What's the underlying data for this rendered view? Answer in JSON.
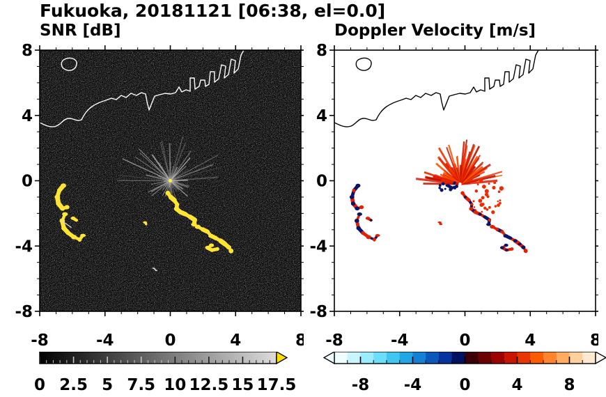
{
  "header": {
    "title": "Fukuoka, 20181121 [06:38, el=0.0]"
  },
  "coastline": {
    "paths": [
      "M 0 104 C 8 108 16 112 24 109 C 31 106 34 99 41 98 C 48 97 52 103 60 100 C 64 92 68 86 75 81 C 81 77 88 74 95 72 L 103 69 L 110 71 L 117 65 L 124 68 L 131 62 L 139 65 L 146 61 L 152 63 L 154 74 L 157 86 L 161 76 L 165 66 L 172 64 L 180 62 L 188 63 L 195 61 L 200 53 L 204 60 L 210 57 L 216 59 L 216 40 L 222 40 L 223 56 L 229 52 L 231 43 L 237 43 L 238 52 L 243 49 L 245 31 L 251 31 L 251 46 L 257 41 L 261 21 L 267 23 L 265 40 L 271 35 L 275 13 L 281 15 L 279 33 L 285 27 L 289 7 L 293 0",
      "M 36 13 C 29 16 30 25 37 28 C 44 31 52 28 53 20 C 54 13 45 9 36 13 Z"
    ]
  },
  "chart_data": [
    {
      "type": "heatmap",
      "panel": "snr",
      "title": "SNR [dB]",
      "xlim": [
        -8,
        8
      ],
      "ylim": [
        -8,
        8
      ],
      "xticks": [
        -8,
        -4,
        0,
        4,
        8
      ],
      "yticks": [
        8,
        4,
        0,
        -4,
        -8
      ],
      "minor_tick_step": 1,
      "background": "#070707",
      "coast_color": "#ffffff",
      "colorbar": {
        "type": "gradient",
        "min": 0,
        "max": 17.5,
        "tick_labels": [
          "0",
          "2.5",
          "5",
          "7.5",
          "10",
          "12.5",
          "15",
          "17.5"
        ],
        "tick_values": [
          0,
          2.5,
          5,
          7.5,
          10,
          12.5,
          15,
          17.5
        ],
        "minor_step": 0.5,
        "start_color": "#000000",
        "end_color": "#dcdcdc",
        "over_arrow_color": "#ffdf00"
      },
      "features": {
        "noise_speckle": true,
        "fan": {
          "cx": 0,
          "cy": 0,
          "rays": 54,
          "angle_from": 0,
          "angle_to": 353,
          "min_len": 0.8,
          "max_len": 3.5,
          "down_scale": 0.45,
          "min_width": 0.6,
          "max_width": 2.0,
          "min_opacity": 0.25,
          "max_opacity": 0.9,
          "colors": [
            "#d8d8d8",
            "#a8a8a8",
            "#8a8a8a",
            "#c2c2c2"
          ]
        },
        "center_dot": {
          "x": 0,
          "y": 0,
          "r": 2.5,
          "color": "#ffee44"
        },
        "echo_chains": [
          {
            "palette": [
              "#ffe433"
            ],
            "width": 5.5,
            "points": [
              [
                -6.55,
                -0.3
              ],
              [
                -6.8,
                -0.6
              ],
              [
                -6.92,
                -1.0
              ],
              [
                -6.85,
                -1.4
              ],
              [
                -6.6,
                -1.7
              ],
              [
                -6.33,
                -1.62
              ]
            ]
          },
          {
            "palette": [
              "#ffe433"
            ],
            "width": 5.5,
            "points": [
              [
                -6.45,
                -2.05
              ],
              [
                -6.62,
                -2.45
              ],
              [
                -6.52,
                -2.9
              ],
              [
                -6.25,
                -3.2
              ],
              [
                -5.9,
                -3.45
              ],
              [
                -5.55,
                -3.6
              ],
              [
                -5.35,
                -3.35
              ]
            ]
          },
          {
            "palette": [
              "#ffe433"
            ],
            "width": 4,
            "points": [
              [
                -5.95,
                -2.3
              ],
              [
                -5.75,
                -2.42
              ]
            ]
          },
          {
            "palette": [
              "#ffe433"
            ],
            "width": 5.5,
            "points": [
              [
                -0.15,
                -0.75
              ],
              [
                0.02,
                -1.0
              ],
              [
                0.25,
                -1.2
              ],
              [
                0.42,
                -1.45
              ],
              [
                0.38,
                -1.72
              ],
              [
                0.62,
                -1.92
              ],
              [
                0.92,
                -2.05
              ],
              [
                1.22,
                -2.22
              ],
              [
                1.5,
                -2.4
              ],
              [
                1.45,
                -2.68
              ]
            ]
          },
          {
            "palette": [
              "#ffe433"
            ],
            "width": 5.5,
            "points": [
              [
                1.68,
                -2.82
              ],
              [
                1.98,
                -2.98
              ],
              [
                2.28,
                -3.12
              ],
              [
                2.5,
                -3.38
              ],
              [
                2.8,
                -3.52
              ],
              [
                3.08,
                -3.68
              ],
              [
                3.35,
                -3.88
              ],
              [
                3.58,
                -4.08
              ],
              [
                3.72,
                -4.3
              ]
            ]
          },
          {
            "palette": [
              "#ffe433"
            ],
            "width": 5,
            "points": [
              [
                2.52,
                -3.95
              ],
              [
                2.28,
                -4.1
              ],
              [
                2.55,
                -4.25
              ],
              [
                2.88,
                -4.18
              ]
            ]
          },
          {
            "palette": [
              "#ffe433"
            ],
            "width": 3,
            "points": [
              [
                -1.55,
                -2.55
              ],
              [
                -1.48,
                -2.66
              ]
            ]
          },
          {
            "palette": [
              "#e2e2e2"
            ],
            "width": 1.6,
            "points": [
              [
                -1.02,
                -5.36
              ],
              [
                -0.86,
                -5.5
              ]
            ]
          },
          {
            "palette": [
              "#d8d8d8"
            ],
            "width": 1.4,
            "points": [
              [
                -6.6,
                -2.48
              ],
              [
                -6.08,
                -2.85
              ]
            ]
          }
        ]
      }
    },
    {
      "type": "heatmap",
      "panel": "velocity",
      "title": "Doppler Velocity [m/s]",
      "xlim": [
        -8,
        8
      ],
      "ylim": [
        -8,
        8
      ],
      "xticks": [
        -8,
        -4,
        0,
        4,
        8
      ],
      "yticks": [
        8,
        4,
        0,
        -4,
        -8
      ],
      "minor_tick_step": 1,
      "background": "#ffffff",
      "coast_color": "#000000",
      "colorbar": {
        "type": "segments",
        "min": -10,
        "max": 10,
        "tick_labels": [
          "-8",
          "-4",
          "0",
          "4",
          "8"
        ],
        "tick_values": [
          -8,
          -4,
          0,
          4,
          8
        ],
        "minor_step": 1,
        "segment_colors": [
          "#f0feff",
          "#c9f5ff",
          "#9cecff",
          "#6cdefb",
          "#3fc6f1",
          "#22a7e6",
          "#1581d5",
          "#0b58bd",
          "#0534a0",
          "#021260",
          "#3c0008",
          "#6d0002",
          "#9c0300",
          "#c81500",
          "#e93600",
          "#fb5c00",
          "#ff842b",
          "#ffab62",
          "#ffd09e",
          "#ffead0"
        ],
        "under_arrow_color": "#effbff",
        "over_arrow_color": "#fff6ec"
      },
      "features": {
        "fan": {
          "cx": -0.3,
          "cy": -0.2,
          "rays": 72,
          "angle_from": 5,
          "angle_to": 178,
          "min_len": 0.35,
          "max_len": 2.85,
          "min_width": 1.5,
          "max_width": 3.4,
          "min_opacity": 0.8,
          "max_opacity": 1,
          "colors": [
            "#f23000",
            "#dd1800",
            "#ff5000",
            "#c01000"
          ]
        },
        "center_dot": {
          "x": -0.3,
          "y": -0.2,
          "r": 2.2,
          "color": "#ffffff"
        },
        "scatter_groups": [
          {
            "color": "#ee2a00",
            "count": 30,
            "x": [
              0.5,
              2.35
            ],
            "y": [
              -1.95,
              0.15
            ],
            "rmin": 1.2,
            "rmax": 3.2
          },
          {
            "color": "#0a1468",
            "count": 10,
            "x": [
              -1.6,
              -0.25
            ],
            "y": [
              -0.8,
              -0.1
            ],
            "rmin": 1.2,
            "rmax": 2.6
          }
        ],
        "echo_chains": [
          {
            "palette": [
              "#e51f00",
              "#0a1468"
            ],
            "mix": 0.72,
            "width": 4.5,
            "points": [
              [
                -6.55,
                -0.3
              ],
              [
                -6.8,
                -0.6
              ],
              [
                -6.92,
                -1.0
              ],
              [
                -6.85,
                -1.4
              ],
              [
                -6.6,
                -1.7
              ],
              [
                -6.33,
                -1.62
              ]
            ]
          },
          {
            "palette": [
              "#e51f00",
              "#0a1468"
            ],
            "mix": 0.7,
            "width": 4.5,
            "points": [
              [
                -6.45,
                -2.05
              ],
              [
                -6.62,
                -2.45
              ],
              [
                -6.52,
                -2.9
              ],
              [
                -6.25,
                -3.2
              ],
              [
                -5.9,
                -3.45
              ],
              [
                -5.55,
                -3.6
              ],
              [
                -5.35,
                -3.35
              ]
            ]
          },
          {
            "palette": [
              "#e51f00",
              "#0a1468"
            ],
            "mix": 0.6,
            "width": 3.5,
            "points": [
              [
                -5.95,
                -2.3
              ],
              [
                -5.75,
                -2.42
              ]
            ]
          },
          {
            "palette": [
              "#0a1468",
              "#e51f00"
            ],
            "mix": 0.55,
            "width": 4,
            "points": [
              [
                -0.15,
                -0.75
              ],
              [
                0.02,
                -1.0
              ],
              [
                0.25,
                -1.2
              ],
              [
                0.42,
                -1.45
              ],
              [
                0.38,
                -1.72
              ],
              [
                0.62,
                -1.92
              ],
              [
                0.92,
                -2.05
              ],
              [
                1.22,
                -2.22
              ],
              [
                1.5,
                -2.4
              ],
              [
                1.45,
                -2.68
              ]
            ]
          },
          {
            "palette": [
              "#e51f00",
              "#0a1468"
            ],
            "mix": 0.55,
            "width": 4.5,
            "points": [
              [
                1.68,
                -2.82
              ],
              [
                1.98,
                -2.98
              ],
              [
                2.28,
                -3.12
              ],
              [
                2.5,
                -3.38
              ],
              [
                2.8,
                -3.52
              ],
              [
                3.08,
                -3.68
              ],
              [
                3.35,
                -3.88
              ],
              [
                3.58,
                -4.08
              ],
              [
                3.72,
                -4.3
              ]
            ]
          },
          {
            "palette": [
              "#e51f00",
              "#0a1468"
            ],
            "mix": 0.5,
            "width": 4,
            "points": [
              [
                2.52,
                -3.95
              ],
              [
                2.28,
                -4.1
              ],
              [
                2.55,
                -4.25
              ],
              [
                2.88,
                -4.18
              ]
            ]
          },
          {
            "palette": [
              "#0a1468"
            ],
            "width": 4,
            "points": [
              [
                -1.05,
                -0.3
              ],
              [
                -0.78,
                -0.44
              ],
              [
                -0.5,
                -0.34
              ]
            ]
          },
          {
            "palette": [
              "#e51f00",
              "#0a1468"
            ],
            "mix": 0.5,
            "width": 3,
            "points": [
              [
                -1.55,
                -2.55
              ],
              [
                -1.48,
                -2.66
              ]
            ]
          }
        ]
      }
    }
  ]
}
